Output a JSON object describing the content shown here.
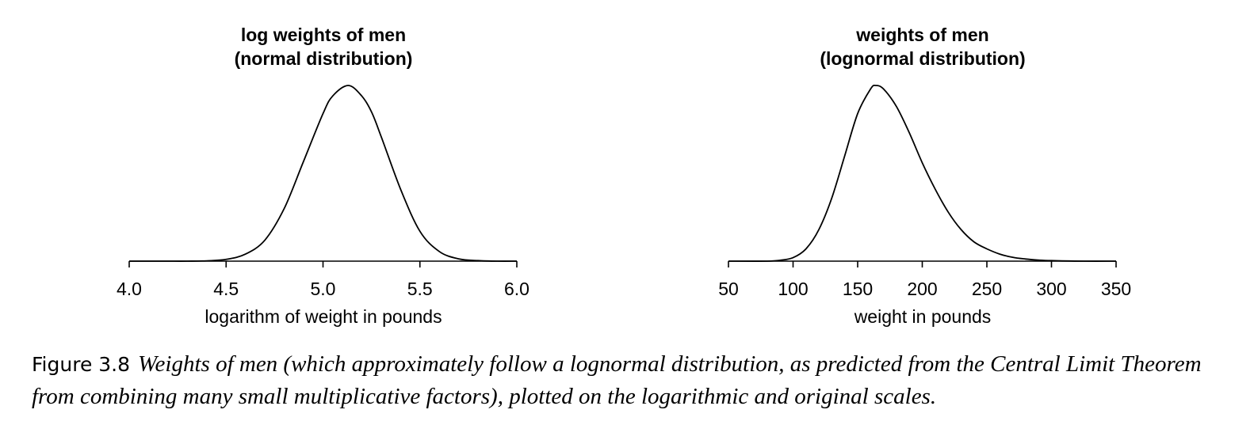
{
  "chart_data": [
    {
      "type": "line",
      "title_lines": [
        "log weights of men",
        "(normal distribution)"
      ],
      "xlabel": "logarithm of weight in pounds",
      "ylabel": "",
      "xlim": [
        4.0,
        6.0
      ],
      "xticks": [
        4.0,
        4.5,
        5.0,
        5.5,
        6.0
      ],
      "xtick_labels": [
        "4.0",
        "4.5",
        "5.0",
        "5.5",
        "6.0"
      ],
      "y_axis_shown": false,
      "grid": false,
      "series": [
        {
          "x": [
            4.0,
            4.1,
            4.2,
            4.3,
            4.4,
            4.5,
            4.6,
            4.7,
            4.8,
            4.9,
            5.0,
            5.05,
            5.13,
            5.2,
            5.25,
            5.3,
            5.4,
            5.5,
            5.6,
            5.7,
            5.8,
            5.9,
            6.0
          ],
          "y": [
            0.0,
            0.0,
            0.0,
            0.0,
            0.002,
            0.01,
            0.04,
            0.12,
            0.3,
            0.57,
            0.84,
            0.94,
            1.0,
            0.94,
            0.85,
            0.71,
            0.41,
            0.17,
            0.055,
            0.013,
            0.003,
            0.0,
            0.0
          ]
        }
      ]
    },
    {
      "type": "line",
      "title_lines": [
        "weights of men",
        "(lognormal distribution)"
      ],
      "xlabel": "weight in pounds",
      "ylabel": "",
      "xlim": [
        50,
        350
      ],
      "xticks": [
        50,
        100,
        150,
        200,
        250,
        300,
        350
      ],
      "xtick_labels": [
        "50",
        "100",
        "150",
        "200",
        "250",
        "300",
        "350"
      ],
      "y_axis_shown": false,
      "grid": false,
      "series": [
        {
          "x": [
            50,
            80,
            90,
            100,
            110,
            120,
            130,
            140,
            150,
            160,
            164,
            170,
            180,
            190,
            200,
            210,
            220,
            230,
            240,
            250,
            260,
            270,
            280,
            290,
            300,
            325,
            350
          ],
          "y": [
            0.0,
            0.0,
            0.005,
            0.02,
            0.07,
            0.18,
            0.36,
            0.6,
            0.84,
            0.98,
            1.0,
            0.98,
            0.88,
            0.73,
            0.56,
            0.41,
            0.28,
            0.18,
            0.11,
            0.07,
            0.04,
            0.022,
            0.012,
            0.006,
            0.003,
            0.0,
            0.0
          ]
        }
      ]
    }
  ],
  "caption": {
    "label": "Figure 3.8",
    "text": "Weights of men (which approximately follow a lognormal distribution, as predicted from the Central Limit Theorem from combining many small multiplicative factors), plotted on the logarithmic and original scales."
  }
}
